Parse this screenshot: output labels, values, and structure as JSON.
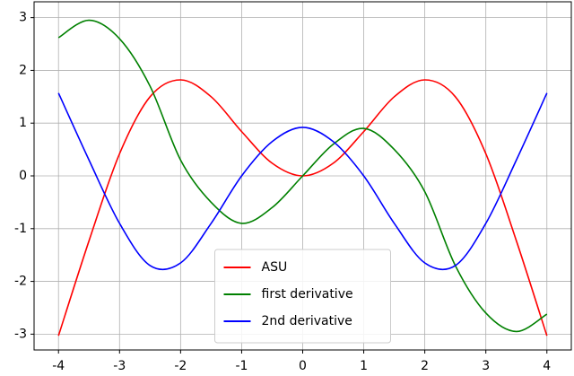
{
  "chart_data": {
    "type": "line",
    "x": [
      -4,
      -3.5,
      -3,
      -2.5,
      -2,
      -1.5,
      -1,
      -0.5,
      0,
      0.5,
      1,
      1.5,
      2,
      2.5,
      3,
      3.5,
      4
    ],
    "series": [
      {
        "name": "ASU",
        "color": "#ff0000",
        "values": [
          -3.03,
          -1.23,
          0.42,
          1.5,
          1.82,
          1.5,
          0.84,
          0.24,
          0,
          0.24,
          0.84,
          1.5,
          1.82,
          1.5,
          0.42,
          -1.23,
          -3.03
        ]
      },
      {
        "name": "first derivative",
        "color": "#008000",
        "values": [
          2.62,
          2.95,
          2.6,
          1.7,
          0.3,
          -0.5,
          -0.9,
          -0.6,
          0,
          0.6,
          0.9,
          0.5,
          -0.3,
          -1.7,
          -2.6,
          -2.95,
          -2.62
        ]
      },
      {
        "name": "2nd derivative",
        "color": "#0000ff",
        "values": [
          1.57,
          0.3,
          -0.9,
          -1.7,
          -1.65,
          -0.9,
          0,
          0.65,
          0.92,
          0.65,
          0,
          -0.9,
          -1.65,
          -1.7,
          -0.9,
          0.3,
          1.57
        ]
      }
    ],
    "xlim": [
      -4.4,
      4.4
    ],
    "ylim": [
      -3.3,
      3.3
    ],
    "xticks": [
      -4,
      -3,
      -2,
      -1,
      0,
      1,
      2,
      3,
      4
    ],
    "yticks": [
      -3,
      -2,
      -1,
      0,
      1,
      2,
      3
    ],
    "grid": true,
    "legend": "lower center"
  }
}
